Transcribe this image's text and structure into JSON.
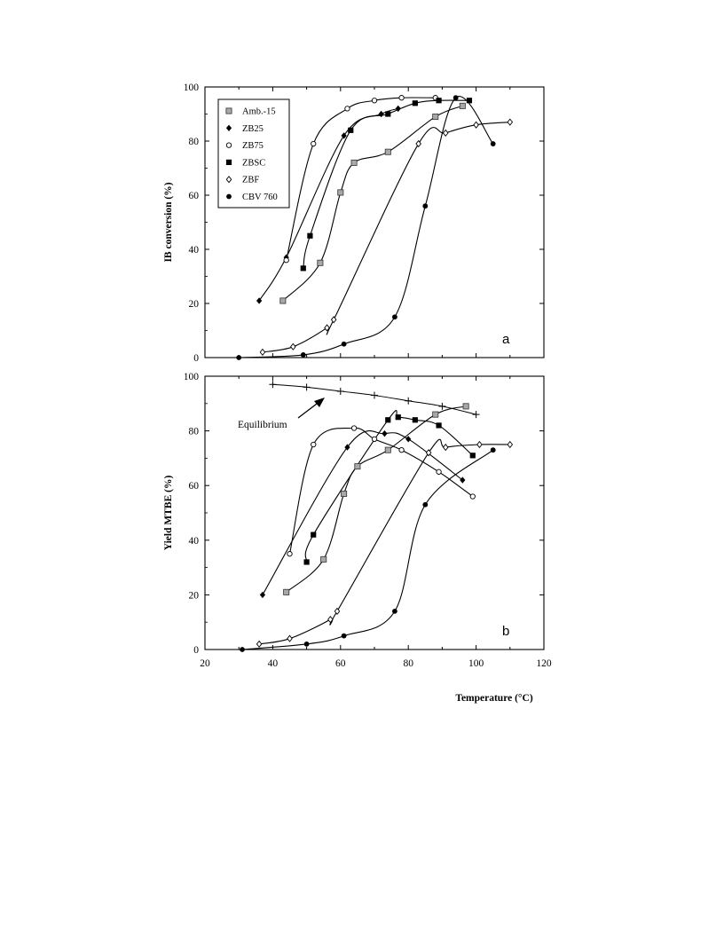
{
  "chart_data": [
    {
      "type": "scatter",
      "panel_label": "a",
      "ylabel": "IB conversion (%)",
      "xlim": [
        20,
        120
      ],
      "ylim": [
        0,
        100
      ],
      "yticks": [
        "0",
        "20",
        "40",
        "60",
        "80",
        "100"
      ],
      "legend": {
        "placement": "top-left"
      },
      "series": [
        {
          "name": "Amb.-15",
          "marker": "square-grey",
          "x": [
            43,
            54,
            64,
            60,
            74,
            88,
            96
          ],
          "y": [
            21,
            35,
            72,
            61,
            76,
            89,
            93
          ]
        },
        {
          "name": "ZB25",
          "marker": "diamond-filled",
          "x": [
            36,
            44,
            61,
            72,
            77
          ],
          "y": [
            21,
            37,
            82,
            90,
            92
          ]
        },
        {
          "name": "ZB75",
          "marker": "circle-open",
          "x": [
            44,
            52,
            62,
            70,
            78,
            88
          ],
          "y": [
            36,
            79,
            92,
            95,
            96,
            96
          ]
        },
        {
          "name": "ZBSC",
          "marker": "square-filled",
          "x": [
            49,
            51,
            63,
            74,
            82,
            89,
            98
          ],
          "y": [
            33,
            45,
            84,
            90,
            94,
            95,
            95
          ]
        },
        {
          "name": "ZBF",
          "marker": "diamond-open",
          "x": [
            37,
            46,
            56,
            58,
            83,
            91,
            100,
            110
          ],
          "y": [
            2,
            4,
            11,
            14,
            79,
            83,
            86,
            87
          ]
        },
        {
          "name": "CBV 760",
          "marker": "circle-filled",
          "x": [
            30,
            49,
            61,
            76,
            85,
            94,
            105
          ],
          "y": [
            0,
            1,
            5,
            15,
            56,
            96,
            79
          ]
        }
      ]
    },
    {
      "type": "scatter",
      "panel_label": "b",
      "ylabel": "Yield MTBE (%)",
      "xlabel": "Temperature (°C)",
      "xlim": [
        20,
        120
      ],
      "ylim": [
        0,
        100
      ],
      "xticks": [
        "20",
        "40",
        "60",
        "80",
        "100",
        "120"
      ],
      "yticks": [
        "0",
        "20",
        "40",
        "60",
        "80",
        "100"
      ],
      "annotation": "Equilibrium",
      "equilibrium": {
        "x": [
          40,
          50,
          60,
          70,
          80,
          90,
          100
        ],
        "y": [
          97,
          96,
          94.5,
          93,
          91,
          89,
          86
        ]
      },
      "series": [
        {
          "name": "Amb.-15",
          "marker": "square-grey",
          "x": [
            44,
            55,
            61,
            65,
            74,
            88,
            97
          ],
          "y": [
            21,
            33,
            57,
            67,
            73,
            86,
            89
          ]
        },
        {
          "name": "ZB25",
          "marker": "diamond-filled",
          "x": [
            37,
            62,
            73,
            80,
            96
          ],
          "y": [
            20,
            74,
            79,
            77,
            62
          ]
        },
        {
          "name": "ZB75",
          "marker": "circle-open",
          "x": [
            45,
            52,
            64,
            70,
            78,
            89,
            99
          ],
          "y": [
            35,
            75,
            81,
            77,
            73,
            65,
            56
          ]
        },
        {
          "name": "ZBSC",
          "marker": "square-filled",
          "x": [
            50,
            52,
            74,
            77,
            82,
            89,
            99
          ],
          "y": [
            32,
            42,
            84,
            85,
            84,
            82,
            71
          ]
        },
        {
          "name": "ZBF",
          "marker": "diamond-open",
          "x": [
            36,
            45,
            57,
            59,
            86,
            91,
            101,
            110
          ],
          "y": [
            2,
            4,
            11,
            14,
            72,
            74,
            75,
            75
          ]
        },
        {
          "name": "CBV 760",
          "marker": "circle-filled",
          "x": [
            31,
            50,
            61,
            76,
            85,
            105
          ],
          "y": [
            0,
            2,
            5,
            14,
            53,
            73
          ]
        }
      ]
    }
  ]
}
